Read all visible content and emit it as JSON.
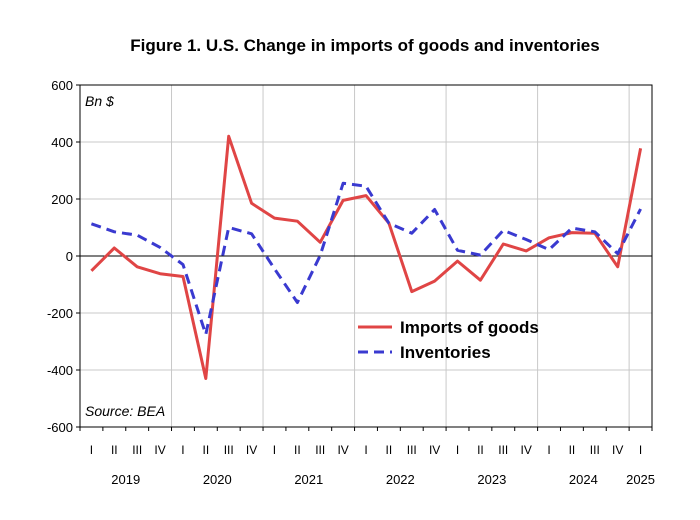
{
  "chart_data": {
    "type": "line",
    "title": "Figure 1. U.S. Change in imports of goods and inventories",
    "unit_label": "Bn $",
    "source": "Source: BEA",
    "ylim": [
      -600,
      600
    ],
    "yticks": [
      600,
      400,
      200,
      0,
      -200,
      -400,
      -600
    ],
    "grid": true,
    "legend_position": "center-right",
    "quarter_labels": [
      "I",
      "II",
      "III",
      "IV",
      "I",
      "II",
      "III",
      "IV",
      "I",
      "II",
      "III",
      "IV",
      "I",
      "II",
      "III",
      "IV",
      "I",
      "II",
      "III",
      "IV",
      "I",
      "II",
      "III",
      "IV",
      "I"
    ],
    "years": [
      {
        "label": "2019",
        "start": 0,
        "end": 3
      },
      {
        "label": "2020",
        "start": 4,
        "end": 7
      },
      {
        "label": "2021",
        "start": 8,
        "end": 11
      },
      {
        "label": "2022",
        "start": 12,
        "end": 15
      },
      {
        "label": "2023",
        "start": 16,
        "end": 19
      },
      {
        "label": "2024",
        "start": 20,
        "end": 23
      },
      {
        "label": "2025",
        "start": 24,
        "end": 24
      }
    ],
    "series": [
      {
        "name": "Imports of goods",
        "color": "#e04545",
        "dash": "solid",
        "values": [
          -52,
          28,
          -38,
          -62,
          -72,
          -430,
          420,
          185,
          133,
          122,
          48,
          195,
          212,
          115,
          -125,
          -88,
          -18,
          -85,
          42,
          18,
          64,
          82,
          80,
          -38,
          378
        ]
      },
      {
        "name": "Inventories",
        "color": "#3a3ad0",
        "dash": "dashed",
        "values": [
          113,
          85,
          73,
          30,
          -30,
          -275,
          100,
          78,
          -45,
          -163,
          2,
          255,
          245,
          115,
          80,
          163,
          20,
          3,
          90,
          58,
          22,
          98,
          85,
          8,
          165
        ]
      }
    ]
  }
}
